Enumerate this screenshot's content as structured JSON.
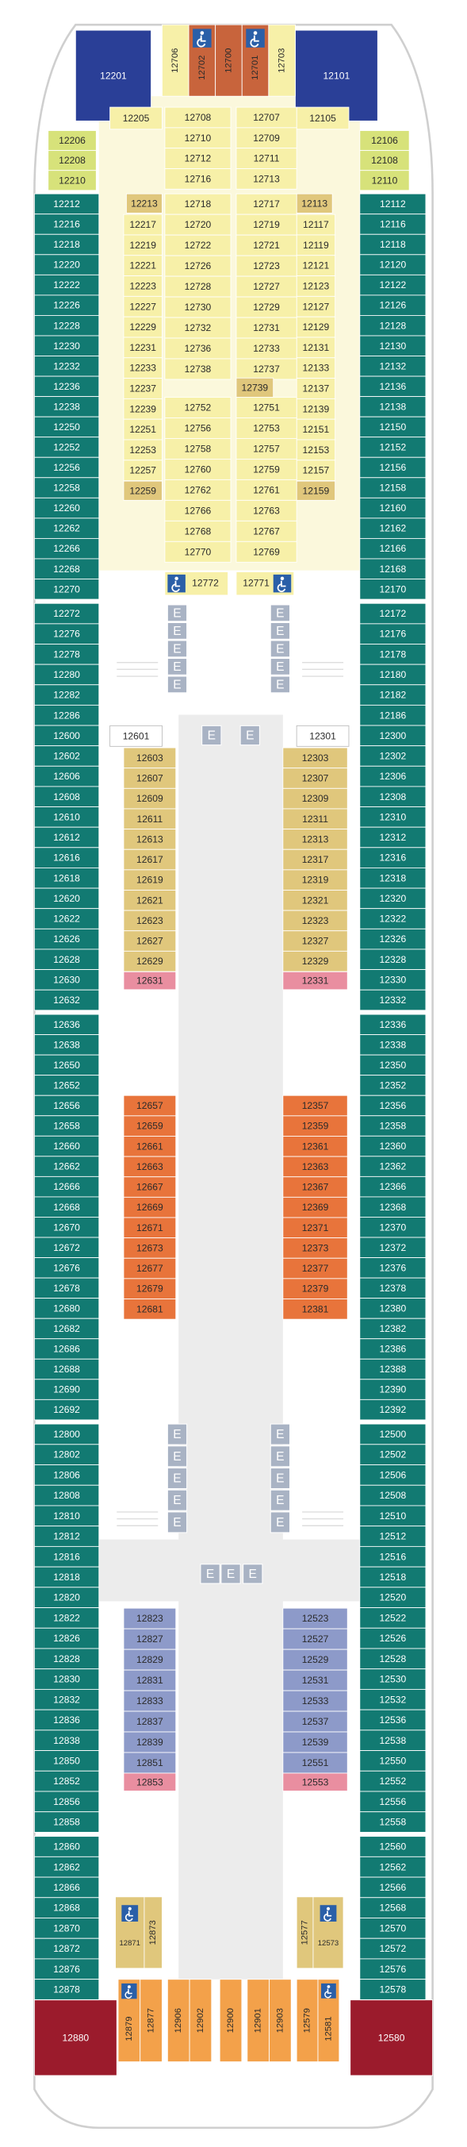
{
  "elevator_label": "E",
  "cabins": {
    "bow_blue_left": [
      "12201"
    ],
    "bow_blue_right": [
      "12101"
    ],
    "bow_center": [
      "12706",
      "12702",
      "12700",
      "12701",
      "12703"
    ],
    "bow_green_left": [
      "12206",
      "12208",
      "12210"
    ],
    "bow_green_right": [
      "12106",
      "12108",
      "12110"
    ],
    "port_1": [
      "12212",
      "12216",
      "12218",
      "12220",
      "12222",
      "12226",
      "12228",
      "12230",
      "12232",
      "12236",
      "12238",
      "12250",
      "12252",
      "12256",
      "12258",
      "12260",
      "12262",
      "12266",
      "12268",
      "12270"
    ],
    "port_2": [
      "12272",
      "12276",
      "12278",
      "12280",
      "12282",
      "12286",
      "12600",
      "12602",
      "12606",
      "12608",
      "12610",
      "12612",
      "12616",
      "12618",
      "12620",
      "12622",
      "12626",
      "12628",
      "12630",
      "12632"
    ],
    "port_3": [
      "12636",
      "12638",
      "12650",
      "12652",
      "12656",
      "12658",
      "12660",
      "12662",
      "12666",
      "12668",
      "12670",
      "12672",
      "12676",
      "12678",
      "12680",
      "12682",
      "12686",
      "12688",
      "12690",
      "12692"
    ],
    "port_4": [
      "12800",
      "12802",
      "12806",
      "12808",
      "12810",
      "12812",
      "12816",
      "12818",
      "12820",
      "12822",
      "12826",
      "12828",
      "12830",
      "12832",
      "12836",
      "12838",
      "12850",
      "12852",
      "12856",
      "12858"
    ],
    "port_5": [
      "12860",
      "12862",
      "12866",
      "12868",
      "12870",
      "12872",
      "12876",
      "12878"
    ],
    "stbd_1": [
      "12112",
      "12116",
      "12118",
      "12120",
      "12122",
      "12126",
      "12128",
      "12130",
      "12132",
      "12136",
      "12138",
      "12150",
      "12152",
      "12156",
      "12158",
      "12160",
      "12162",
      "12166",
      "12168",
      "12170"
    ],
    "stbd_2": [
      "12172",
      "12176",
      "12178",
      "12180",
      "12182",
      "12186",
      "12300",
      "12302",
      "12306",
      "12308",
      "12310",
      "12312",
      "12316",
      "12318",
      "12320",
      "12322",
      "12326",
      "12328",
      "12330",
      "12332"
    ],
    "stbd_3": [
      "12336",
      "12338",
      "12350",
      "12352",
      "12356",
      "12358",
      "12360",
      "12362",
      "12366",
      "12368",
      "12370",
      "12372",
      "12376",
      "12378",
      "12380",
      "12382",
      "12386",
      "12388",
      "12390",
      "12392"
    ],
    "stbd_4": [
      "12500",
      "12502",
      "12506",
      "12508",
      "12510",
      "12512",
      "12516",
      "12518",
      "12520",
      "12522",
      "12526",
      "12528",
      "12530",
      "12532",
      "12536",
      "12538",
      "12550",
      "12552",
      "12556",
      "12558"
    ],
    "stbd_5": [
      "12560",
      "12562",
      "12566",
      "12568",
      "12570",
      "12572",
      "12576",
      "12578"
    ],
    "fwd_inner_left_top": [
      "12205"
    ],
    "fwd_inner_right_top": [
      "12105"
    ],
    "fwd_inner_left_tan_top": [
      "12213"
    ],
    "fwd_inner_right_tan_top": [
      "12113"
    ],
    "fwd_inner_left": [
      "12217",
      "12219",
      "12221",
      "12223",
      "12227",
      "12229",
      "12231",
      "12233",
      "12237",
      "12239",
      "12251",
      "12253",
      "12257"
    ],
    "fwd_inner_right": [
      "12117",
      "12119",
      "12121",
      "12123",
      "12127",
      "12129",
      "12131",
      "12133",
      "12137",
      "12139",
      "12151",
      "12153",
      "12157"
    ],
    "fwd_inner_left_tan_bottom": [
      "12259"
    ],
    "fwd_inner_right_tan_bottom": [
      "12159"
    ],
    "fwd_center_left_a": [
      "12708",
      "12710",
      "12712",
      "12716"
    ],
    "fwd_center_left_b": [
      "12718",
      "12720",
      "12722",
      "12726",
      "12728",
      "12730",
      "12732",
      "12736",
      "12738"
    ],
    "fwd_center_left_c": [
      "12752",
      "12756",
      "12758",
      "12760",
      "12762",
      "12766",
      "12768",
      "12770"
    ],
    "fwd_center_right_a": [
      "12707",
      "12709",
      "12711",
      "12713"
    ],
    "fwd_center_right_b": [
      "12717",
      "12719",
      "12721",
      "12723",
      "12727",
      "12729",
      "12731",
      "12733",
      "12737"
    ],
    "fwd_center_right_tan": [
      "12739"
    ],
    "fwd_center_right_c": [
      "12751",
      "12753",
      "12757",
      "12759",
      "12761",
      "12763",
      "12767",
      "12769"
    ],
    "fwd_accessible_left": [
      "12772"
    ],
    "fwd_accessible_right": [
      "12771"
    ],
    "mid_white_left": [
      "12601"
    ],
    "mid_white_right": [
      "12301"
    ],
    "mid_tan_left": [
      "12603",
      "12607",
      "12609",
      "12611",
      "12613",
      "12617",
      "12619",
      "12621",
      "12623",
      "12627",
      "12629"
    ],
    "mid_tan_right": [
      "12303",
      "12307",
      "12309",
      "12311",
      "12313",
      "12317",
      "12319",
      "12321",
      "12323",
      "12327",
      "12329"
    ],
    "mid_pink_left": [
      "12631"
    ],
    "mid_pink_right": [
      "12331"
    ],
    "orange_left": [
      "12657",
      "12659",
      "12661",
      "12663",
      "12667",
      "12669",
      "12671",
      "12673",
      "12677",
      "12679",
      "12681"
    ],
    "orange_right": [
      "12357",
      "12359",
      "12361",
      "12363",
      "12367",
      "12369",
      "12371",
      "12373",
      "12377",
      "12379",
      "12381"
    ],
    "blue_left": [
      "12823",
      "12827",
      "12829",
      "12831",
      "12833",
      "12837",
      "12839",
      "12851"
    ],
    "blue_right": [
      "12523",
      "12527",
      "12529",
      "12531",
      "12533",
      "12537",
      "12539",
      "12551"
    ],
    "aft_pink_left": [
      "12853"
    ],
    "aft_pink_right": [
      "12553"
    ],
    "aft_tan_left_a": [
      "12871"
    ],
    "aft_tan_left_b": [
      "12873"
    ],
    "aft_tan_right_a": [
      "12577"
    ],
    "aft_tan_right_b": [
      "12573"
    ],
    "stern_1": [
      "12879",
      "12877"
    ],
    "stern_2": [
      "12906",
      "12902"
    ],
    "stern_3": [
      "12900"
    ],
    "stern_4": [
      "12901",
      "12903"
    ],
    "stern_5": [
      "12579",
      "12581"
    ],
    "stern_left": [
      "12880"
    ],
    "stern_right": [
      "12580"
    ]
  }
}
